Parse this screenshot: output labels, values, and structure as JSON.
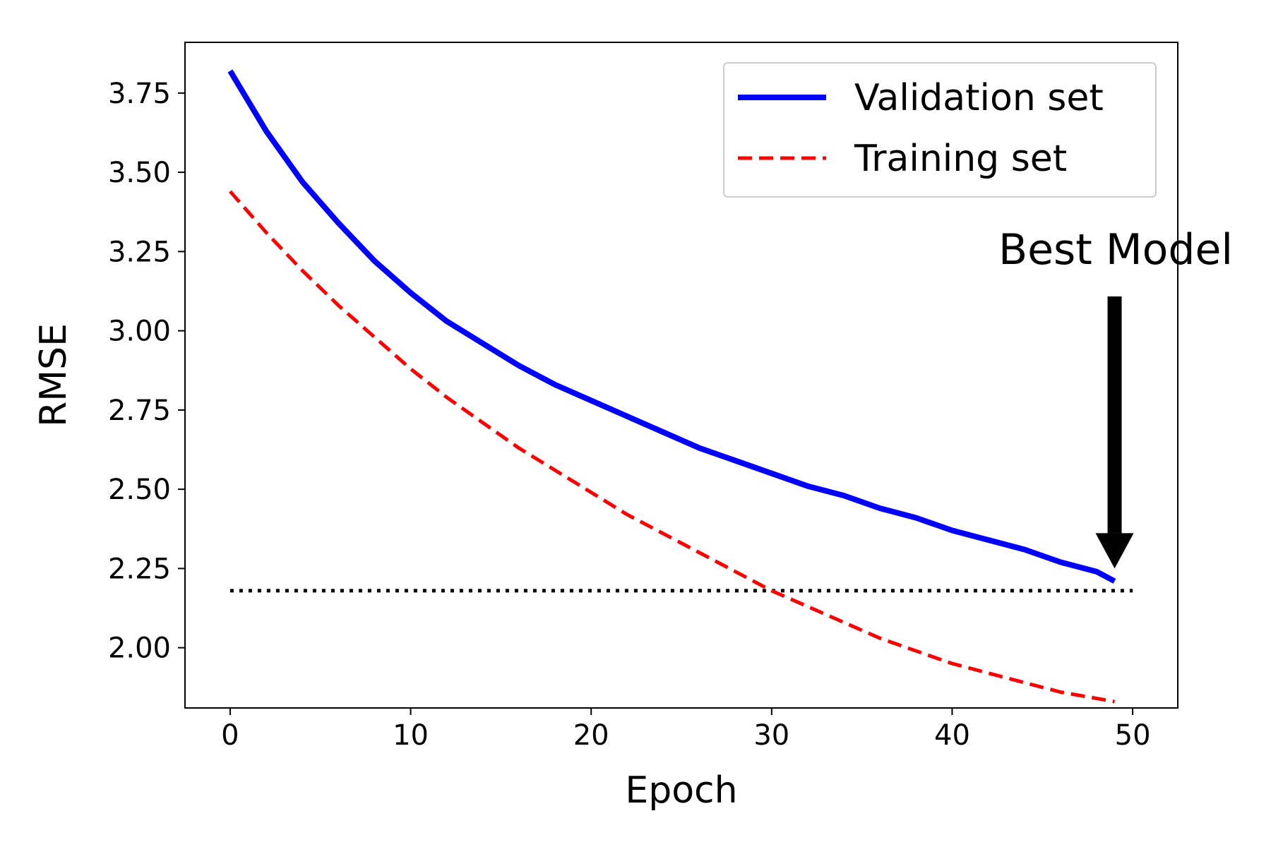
{
  "chart_data": {
    "type": "line",
    "title": "",
    "xlabel": "Epoch",
    "ylabel": "RMSE",
    "xlim": [
      -2.5,
      52.5
    ],
    "ylim": [
      1.81,
      3.91
    ],
    "xticks": [
      0,
      10,
      20,
      30,
      40,
      50
    ],
    "xtick_labels": [
      "0",
      "10",
      "20",
      "30",
      "40",
      "50"
    ],
    "yticks": [
      2.0,
      2.25,
      2.5,
      2.75,
      3.0,
      3.25,
      3.5,
      3.75
    ],
    "ytick_labels": [
      "2.00",
      "2.25",
      "2.50",
      "2.75",
      "3.00",
      "3.25",
      "3.50",
      "3.75"
    ],
    "grid": false,
    "legend_position": "top-right",
    "series": [
      {
        "name": "Validation set",
        "style": "solid",
        "color": "#0000ff",
        "x": [
          0,
          2,
          4,
          6,
          8,
          10,
          12,
          14,
          16,
          18,
          20,
          22,
          24,
          26,
          28,
          30,
          32,
          34,
          36,
          38,
          40,
          42,
          44,
          46,
          48,
          49
        ],
        "y": [
          3.82,
          3.63,
          3.47,
          3.34,
          3.22,
          3.12,
          3.03,
          2.96,
          2.89,
          2.83,
          2.78,
          2.73,
          2.68,
          2.63,
          2.59,
          2.55,
          2.51,
          2.48,
          2.44,
          2.41,
          2.37,
          2.34,
          2.31,
          2.27,
          2.24,
          2.21
        ]
      },
      {
        "name": "Training set",
        "style": "dashed",
        "color": "#ff0000",
        "x": [
          0,
          2,
          4,
          6,
          8,
          10,
          12,
          14,
          16,
          18,
          20,
          22,
          24,
          26,
          28,
          30,
          32,
          34,
          36,
          38,
          40,
          42,
          44,
          46,
          48,
          49
        ],
        "y": [
          3.44,
          3.31,
          3.19,
          3.08,
          2.98,
          2.88,
          2.79,
          2.71,
          2.63,
          2.56,
          2.49,
          2.42,
          2.36,
          2.3,
          2.24,
          2.18,
          2.13,
          2.08,
          2.03,
          1.99,
          1.95,
          1.92,
          1.89,
          1.86,
          1.84,
          1.83
        ]
      }
    ],
    "reference_line": {
      "style": "dotted",
      "color": "#000000",
      "y": 2.18,
      "x_range": [
        0,
        50
      ]
    },
    "annotation": {
      "text": "Best Model",
      "arrow_target": {
        "x": 49,
        "y": 2.25
      }
    }
  }
}
